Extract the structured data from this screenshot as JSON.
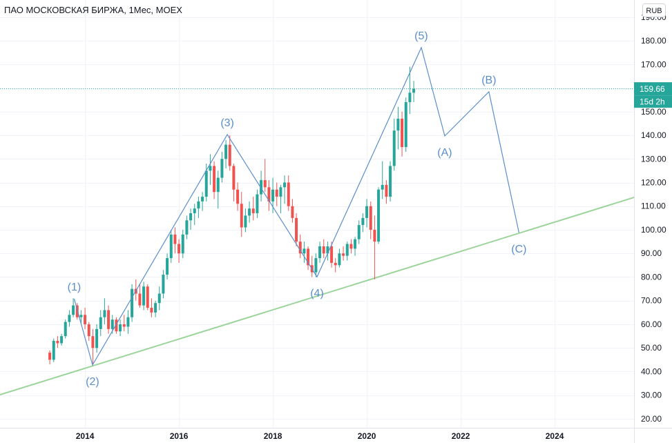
{
  "header": {
    "title": "ПАО МОСКОВСКАЯ БИРЖА, 1Мес, MOEX",
    "currency": "RUB"
  },
  "colors": {
    "up": "#26a69a",
    "down": "#ef5350",
    "wave": "#5a8ecb",
    "trendline": "#9bd49a",
    "grid": "#f0f3fa",
    "axis_border": "#e0e3eb",
    "price_badge": "#26a69a"
  },
  "chart_data": {
    "type": "candlestick",
    "x_range": [
      2012.19,
      2025.69
    ],
    "y_range": [
      16.2,
      197.23
    ],
    "first_bar": {
      "year": 2013,
      "month": 4
    },
    "ohlc": [
      [
        48,
        49,
        43,
        45
      ],
      [
        45,
        54,
        44,
        53
      ],
      [
        53,
        55,
        50,
        52
      ],
      [
        52,
        56,
        51,
        55
      ],
      [
        55,
        62,
        54,
        61
      ],
      [
        61,
        66,
        59,
        64
      ],
      [
        64,
        71,
        63,
        68
      ],
      [
        68,
        69,
        62,
        63
      ],
      [
        63,
        66,
        60,
        64
      ],
      [
        64,
        67,
        58,
        60
      ],
      [
        60,
        61,
        53,
        55
      ],
      [
        55,
        58,
        43,
        50
      ],
      [
        50,
        60,
        48,
        58
      ],
      [
        58,
        66,
        55,
        63
      ],
      [
        63,
        71,
        60,
        66
      ],
      [
        66,
        68,
        56,
        58
      ],
      [
        58,
        64,
        56,
        62
      ],
      [
        62,
        63,
        56,
        57
      ],
      [
        57,
        62,
        55,
        60
      ],
      [
        60,
        64,
        57,
        59
      ],
      [
        59,
        66,
        56,
        63
      ],
      [
        63,
        77,
        61,
        75
      ],
      [
        75,
        79,
        70,
        73
      ],
      [
        73,
        77,
        67,
        68
      ],
      [
        68,
        78,
        66,
        76
      ],
      [
        76,
        77,
        66,
        67
      ],
      [
        67,
        71,
        63,
        65
      ],
      [
        65,
        70,
        63,
        69
      ],
      [
        69,
        76,
        66,
        73
      ],
      [
        73,
        83,
        71,
        81
      ],
      [
        81,
        90,
        79,
        88
      ],
      [
        88,
        100,
        86,
        98
      ],
      [
        98,
        101,
        90,
        94
      ],
      [
        94,
        96,
        86,
        90
      ],
      [
        90,
        100,
        88,
        98
      ],
      [
        98,
        106,
        96,
        104
      ],
      [
        104,
        109,
        100,
        107
      ],
      [
        107,
        111,
        102,
        109
      ],
      [
        109,
        114,
        105,
        112
      ],
      [
        112,
        116,
        108,
        114
      ],
      [
        114,
        128,
        112,
        125
      ],
      [
        125,
        132,
        119,
        127
      ],
      [
        127,
        129,
        113,
        116
      ],
      [
        116,
        125,
        109,
        122
      ],
      [
        122,
        133,
        120,
        130
      ],
      [
        130,
        138,
        126,
        136
      ],
      [
        136,
        140,
        125,
        127
      ],
      [
        127,
        128,
        112,
        117
      ],
      [
        117,
        120,
        108,
        111
      ],
      [
        111,
        116,
        97,
        101
      ],
      [
        101,
        109,
        99,
        106
      ],
      [
        106,
        112,
        103,
        109
      ],
      [
        109,
        114,
        104,
        107
      ],
      [
        107,
        117,
        105,
        115
      ],
      [
        115,
        125,
        112,
        121
      ],
      [
        121,
        130,
        116,
        118
      ],
      [
        118,
        121,
        108,
        112
      ],
      [
        112,
        122,
        107,
        117
      ],
      [
        117,
        120,
        110,
        114
      ],
      [
        114,
        119,
        107,
        118
      ],
      [
        118,
        123,
        111,
        120
      ],
      [
        120,
        123,
        108,
        110
      ],
      [
        110,
        113,
        103,
        105
      ],
      [
        105,
        107,
        93,
        95
      ],
      [
        95,
        98,
        88,
        90
      ],
      [
        90,
        95,
        86,
        92
      ],
      [
        92,
        93,
        83,
        85
      ],
      [
        85,
        89,
        80,
        82
      ],
      [
        82,
        90,
        80,
        88
      ],
      [
        88,
        95,
        86,
        93
      ],
      [
        93,
        96,
        88,
        90
      ],
      [
        90,
        95,
        87,
        93
      ],
      [
        93,
        95,
        84,
        86
      ],
      [
        86,
        88,
        82,
        85
      ],
      [
        85,
        92,
        84,
        90
      ],
      [
        90,
        93,
        87,
        89
      ],
      [
        89,
        95,
        87,
        94
      ],
      [
        94,
        96,
        90,
        92
      ],
      [
        92,
        97,
        89,
        96
      ],
      [
        96,
        104,
        94,
        102
      ],
      [
        102,
        107,
        99,
        105
      ],
      [
        105,
        113,
        101,
        110
      ],
      [
        110,
        112,
        96,
        100
      ],
      [
        100,
        106,
        79,
        95
      ],
      [
        95,
        118,
        94,
        117
      ],
      [
        117,
        129,
        113,
        119
      ],
      [
        119,
        121,
        111,
        114
      ],
      [
        114,
        129,
        112,
        127
      ],
      [
        127,
        147,
        125,
        142
      ],
      [
        142,
        152,
        134,
        147
      ],
      [
        147,
        150,
        131,
        135
      ],
      [
        135,
        156,
        133,
        154
      ],
      [
        154,
        169,
        149,
        158
      ],
      [
        158,
        163,
        154,
        159.66
      ]
    ],
    "last_price": "159.66",
    "bar_countdown": "15d 2h",
    "x_tick_labels": [
      "2014",
      "2016",
      "2018",
      "2020",
      "2022",
      "2024"
    ],
    "y_tick_labels": [
      "190.00",
      "180.00",
      "170.00",
      "150.00",
      "140.00",
      "130.00",
      "120.00",
      "110.00",
      "100.00",
      "90.00",
      "80.00",
      "70.00",
      "60.00",
      "50.00",
      "40.00",
      "30.00",
      "20.00"
    ],
    "y_grid": [
      20,
      30,
      40,
      50,
      60,
      70,
      80,
      90,
      100,
      110,
      120,
      130,
      140,
      150,
      160,
      170,
      180,
      190
    ],
    "waves": [
      {
        "label": "(1)",
        "year": 2013.77,
        "price": 70.8
      },
      {
        "label": "(2)",
        "year": 2014.16,
        "price": 42.8
      },
      {
        "label": "(3)",
        "year": 2017.03,
        "price": 140.3
      },
      {
        "label": "(4)",
        "year": 2018.94,
        "price": 80.1
      },
      {
        "label": "(5)",
        "year": 2021.16,
        "price": 177.1
      },
      {
        "label": "(A)",
        "year": 2021.66,
        "price": 139.7
      },
      {
        "label": "(B)",
        "year": 2022.6,
        "price": 158.4
      },
      {
        "label": "(C)",
        "year": 2023.24,
        "price": 98.8
      }
    ],
    "trendline": {
      "from": {
        "year": 2012.19,
        "price": 30.2
      },
      "to": {
        "year": 2025.69,
        "price": 113.7
      }
    }
  }
}
